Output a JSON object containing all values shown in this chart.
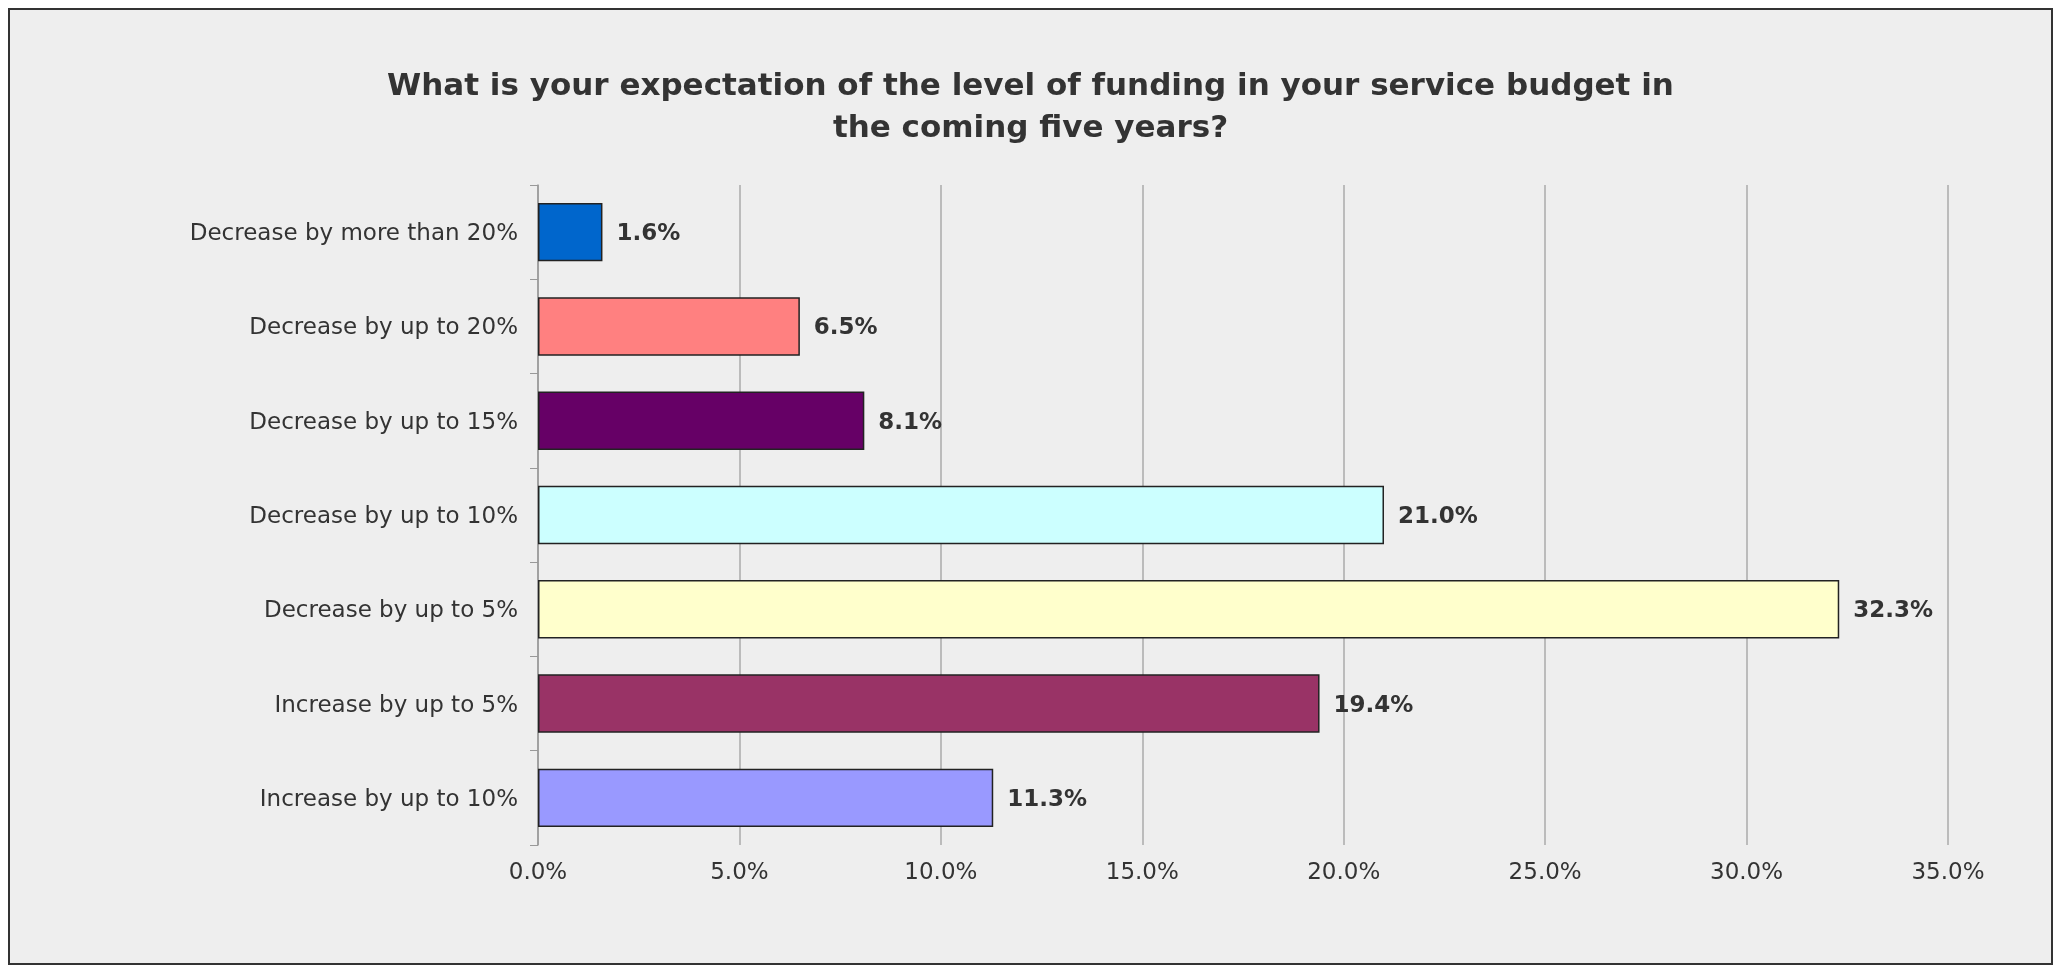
{
  "chart_data": {
    "type": "bar",
    "orientation": "horizontal",
    "title": "What is your expectation of the level of funding in your service budget in\nthe coming five years?",
    "categories": [
      "Decrease by more than 20%",
      "Decrease by up to 20%",
      "Decrease by up to 15%",
      "Decrease by up to 10%",
      "Decrease by up to 5%",
      "Increase by up to 5%",
      "Increase by up to 10%"
    ],
    "values": [
      1.6,
      6.5,
      8.1,
      21.0,
      32.3,
      19.4,
      11.3
    ],
    "colors": [
      "#0066cc",
      "#ff8080",
      "#660066",
      "#ccffff",
      "#ffffcc",
      "#993366",
      "#9999ff"
    ],
    "value_labels": [
      "1.6%",
      "6.5%",
      "8.1%",
      "21.0%",
      "32.3%",
      "19.4%",
      "11.3%"
    ],
    "xlim": [
      0,
      35
    ],
    "xticks": [
      {
        "value": 0,
        "label": "0.0%"
      },
      {
        "value": 5,
        "label": "5.0%"
      },
      {
        "value": 10,
        "label": "10.0%"
      },
      {
        "value": 15,
        "label": "15.0%"
      },
      {
        "value": 20,
        "label": "20.0%"
      },
      {
        "value": 25,
        "label": "25.0%"
      },
      {
        "value": 30,
        "label": "30.0%"
      },
      {
        "value": 35,
        "label": "35.0%"
      }
    ],
    "grid": "x"
  }
}
